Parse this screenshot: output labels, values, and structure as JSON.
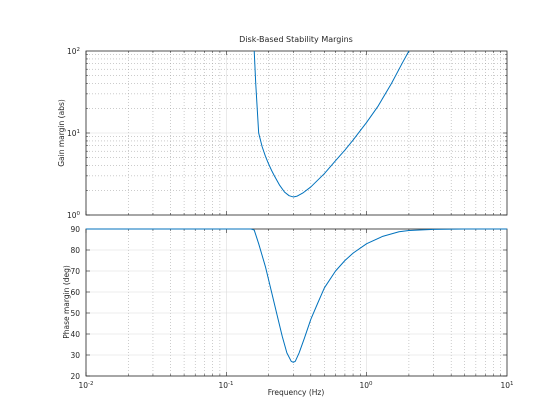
{
  "chart_data": [
    {
      "type": "line",
      "title": "Disk-Based Stability Margins",
      "xlabel": "",
      "ylabel": "Gain margin (abs)",
      "xscale": "log",
      "yscale": "log",
      "xlim": [
        0.01,
        10
      ],
      "ylim": [
        1,
        100
      ],
      "grid": true,
      "color": "#0072BD",
      "x_ticks": [
        "",
        "",
        "",
        ""
      ],
      "y_ticks": [
        {
          "base": "10",
          "exp": "0"
        },
        {
          "base": "10",
          "exp": "1"
        },
        {
          "base": "10",
          "exp": "2"
        }
      ],
      "series": [
        {
          "x": [
            0.158,
            0.162,
            0.17,
            0.18,
            0.19,
            0.2,
            0.21,
            0.22,
            0.24,
            0.26,
            0.28,
            0.3,
            0.32,
            0.35,
            0.4,
            0.5,
            0.6,
            0.7,
            0.8,
            1.0,
            1.2,
            1.5,
            1.8,
            2.0
          ],
          "y": [
            100,
            40,
            10,
            6.8,
            5.2,
            4.2,
            3.5,
            3.0,
            2.3,
            1.9,
            1.72,
            1.66,
            1.7,
            1.85,
            2.2,
            3.2,
            4.6,
            6.2,
            8.2,
            13.5,
            21,
            40,
            72,
            100
          ]
        }
      ]
    },
    {
      "type": "line",
      "title": "",
      "xlabel": "Frequency (Hz)",
      "ylabel": "Phase margin (deg)",
      "xscale": "log",
      "yscale": "linear",
      "xlim": [
        0.01,
        10
      ],
      "ylim": [
        20,
        90
      ],
      "grid": true,
      "color": "#0072BD",
      "x_ticks": [
        {
          "base": "10",
          "exp": "-2"
        },
        {
          "base": "10",
          "exp": "-1"
        },
        {
          "base": "10",
          "exp": "0"
        },
        {
          "base": "10",
          "exp": "1"
        }
      ],
      "y_ticks": [
        "20",
        "30",
        "40",
        "50",
        "60",
        "70",
        "80",
        "90"
      ],
      "series": [
        {
          "x": [
            0.01,
            0.1,
            0.15,
            0.158,
            0.17,
            0.19,
            0.21,
            0.23,
            0.25,
            0.27,
            0.29,
            0.3,
            0.31,
            0.33,
            0.36,
            0.4,
            0.45,
            0.5,
            0.6,
            0.7,
            0.8,
            1.0,
            1.3,
            1.7,
            2.0,
            3.0,
            5.0,
            10.0
          ],
          "y": [
            90,
            90,
            90,
            89.5,
            83,
            72,
            60,
            49,
            39,
            31,
            27,
            26.5,
            27,
            31,
            38,
            47,
            55,
            62,
            70,
            75,
            78.5,
            83,
            86.5,
            88.7,
            89.3,
            89.8,
            90,
            90
          ]
        }
      ]
    }
  ]
}
